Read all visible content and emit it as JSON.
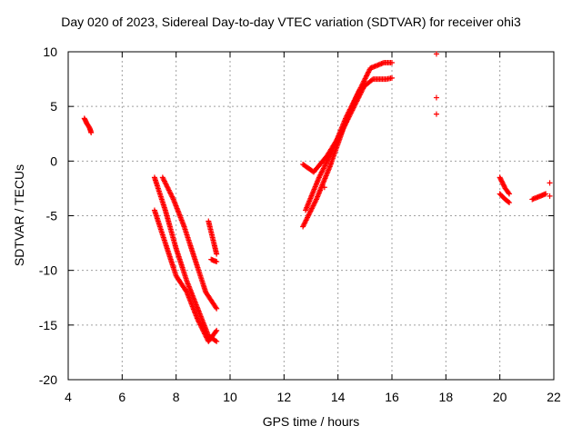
{
  "chart_data": {
    "type": "scatter",
    "title": "Day 020 of 2023, Sidereal Day-to-day VTEC variation (SDTVAR) for receiver ohi3",
    "xlabel": "GPS time / hours",
    "ylabel": "SDTVAR / TECUs",
    "xlim": [
      4,
      22
    ],
    "ylim": [
      -20,
      10
    ],
    "xticks": [
      "4",
      "6",
      "8",
      "10",
      "12",
      "14",
      "16",
      "18",
      "20",
      "22"
    ],
    "yticks": [
      "10",
      "5",
      "0",
      "-5",
      "-10",
      "-15",
      "-20"
    ],
    "grid": true,
    "marker": "+",
    "color": "#ff0000",
    "segments": [
      {
        "x": [
          4.6,
          4.7,
          4.8,
          4.85
        ],
        "y": [
          3.9,
          3.4,
          3.0,
          2.6
        ]
      },
      {
        "x": [
          7.2,
          7.6,
          8.0,
          8.4,
          8.8,
          9.2,
          9.5
        ],
        "y": [
          -1.5,
          -4.5,
          -8.0,
          -11.0,
          -13.5,
          -16.0,
          -16.5
        ]
      },
      {
        "x": [
          7.2,
          7.6,
          8.0,
          8.4,
          8.8,
          9.2,
          9.5
        ],
        "y": [
          -4.5,
          -7.5,
          -10.5,
          -12.0,
          -14.5,
          -16.5,
          -15.5
        ]
      },
      {
        "x": [
          7.5,
          7.9,
          8.3,
          8.7,
          9.1,
          9.5
        ],
        "y": [
          -1.5,
          -3.5,
          -6.0,
          -9.0,
          -12.0,
          -13.5
        ]
      },
      {
        "x": [
          9.2,
          9.35,
          9.5
        ],
        "y": [
          -5.5,
          -7.0,
          -8.5
        ]
      },
      {
        "x": [
          9.3,
          9.5
        ],
        "y": [
          -9.0,
          -9.2
        ]
      },
      {
        "x": [
          12.7,
          13.2,
          13.7,
          14.2,
          14.7,
          15.2,
          15.7,
          16.0
        ],
        "y": [
          -6.0,
          -3.5,
          -0.5,
          3.0,
          6.0,
          8.5,
          9.0,
          9.0
        ]
      },
      {
        "x": [
          12.8,
          13.3,
          13.8,
          14.3,
          14.8,
          15.3,
          15.8,
          16.0
        ],
        "y": [
          -4.5,
          -1.5,
          1.0,
          4.0,
          6.5,
          7.5,
          7.5,
          7.6
        ]
      },
      {
        "x": [
          12.7,
          13.1,
          13.6,
          14.1,
          14.6,
          15.0
        ],
        "y": [
          -0.3,
          -1.0,
          0.5,
          2.5,
          5.0,
          7.0
        ]
      },
      {
        "x": [
          17.65,
          17.65,
          17.65
        ],
        "y": [
          9.8,
          5.8,
          4.3
        ]
      },
      {
        "x": [
          13.5
        ],
        "y": [
          -2.4
        ]
      },
      {
        "x": [
          20.0,
          20.2,
          20.35
        ],
        "y": [
          -1.5,
          -2.5,
          -3.0
        ]
      },
      {
        "x": [
          20.0,
          20.2,
          20.35
        ],
        "y": [
          -3.0,
          -3.5,
          -3.8
        ]
      },
      {
        "x": [
          21.2,
          21.5,
          21.7
        ],
        "y": [
          -3.5,
          -3.2,
          -3.0
        ]
      },
      {
        "x": [
          21.85,
          21.85
        ],
        "y": [
          -2.0,
          -3.2
        ]
      }
    ]
  }
}
